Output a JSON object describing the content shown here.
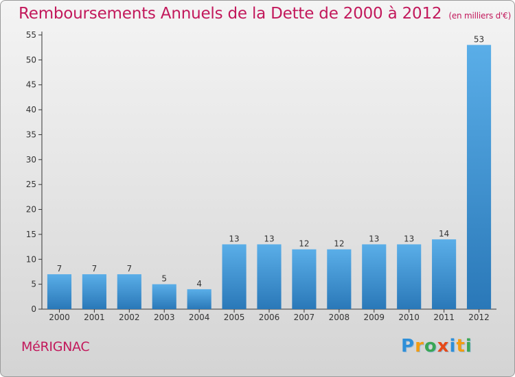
{
  "title": "Remboursements Annuels de la Dette de 2000 à 2012",
  "subtitle": "(en milliers d'€)",
  "commune": "MéRIGNAC",
  "brand": {
    "letters": [
      {
        "char": "P",
        "color": "#2e8fd8"
      },
      {
        "char": "r",
        "color": "#f39c12"
      },
      {
        "char": "o",
        "color": "#3aa655"
      },
      {
        "char": "x",
        "color": "#e64a19"
      },
      {
        "char": "i",
        "color": "#2e8fd8"
      },
      {
        "char": "t",
        "color": "#f39c12"
      },
      {
        "char": "i",
        "color": "#3aa655"
      }
    ]
  },
  "colors": {
    "accent": "#c2185b",
    "bar_top": "#5aaee8",
    "bar_bottom": "#2a78b8",
    "axis": "#333333"
  },
  "chart_data": {
    "type": "bar",
    "categories": [
      "2000",
      "2001",
      "2002",
      "2003",
      "2004",
      "2005",
      "2006",
      "2007",
      "2008",
      "2009",
      "2010",
      "2011",
      "2012"
    ],
    "values": [
      7,
      7,
      7,
      5,
      4,
      13,
      13,
      12,
      12,
      13,
      13,
      14,
      53
    ],
    "data_labels": [
      "7",
      "7",
      "7",
      "5",
      "4",
      "13",
      "13",
      "12",
      "12",
      "13",
      "13",
      "14",
      "53"
    ],
    "y_ticks": [
      0,
      5,
      10,
      15,
      20,
      25,
      30,
      35,
      40,
      45,
      50,
      55
    ],
    "ylim": [
      0,
      55
    ],
    "grid": false,
    "legend": "none"
  }
}
